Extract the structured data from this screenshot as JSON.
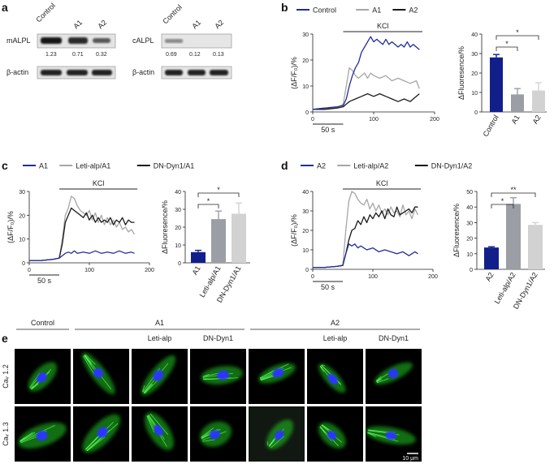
{
  "panels": {
    "a": "a",
    "b": "b",
    "c": "c",
    "d": "d",
    "e": "e"
  },
  "colors": {
    "blue": "#1f2f96",
    "gray": "#a6a6a6",
    "black": "#1a1a1a",
    "navy": "#121f8a",
    "midgray": "#9b9ea5",
    "lightgray": "#d2d2d2",
    "green": "#22c922",
    "nucleus": "#2a35ff"
  },
  "western": [
    {
      "protein": "mALPL",
      "lanes": [
        "Control",
        "A1",
        "A2"
      ],
      "values": [
        "1.23",
        "0.71",
        "0.32"
      ],
      "loading": "β-actin"
    },
    {
      "protein": "cALPL",
      "lanes": [
        "Control",
        "A1",
        "A2"
      ],
      "values": [
        "0.69",
        "0.12",
        "0.13"
      ],
      "loading": "β-actin"
    }
  ],
  "common": {
    "kcl": "KCl",
    "scale": "50 s",
    "ylabel": "(ΔF/F₀)/%",
    "barylabel": "ΔFluoresence/%",
    "sig1": "*",
    "sig2": "**"
  },
  "chart_data": [
    {
      "id": "b-trace",
      "type": "line",
      "legend": [
        "Control",
        "A1",
        "A2"
      ],
      "xlim": [
        0,
        200
      ],
      "ylim": [
        0,
        30
      ],
      "xticks": [
        0,
        100,
        200
      ],
      "yticks": [
        0,
        10,
        20,
        30
      ],
      "kcl_range": [
        50,
        180
      ],
      "series": [
        {
          "name": "Control",
          "x": [
            0,
            20,
            40,
            50,
            55,
            60,
            65,
            70,
            75,
            80,
            85,
            90,
            95,
            100,
            105,
            110,
            115,
            120,
            125,
            130,
            135,
            140,
            145,
            150,
            155,
            160,
            165,
            170,
            175
          ],
          "y": [
            1,
            1.5,
            2,
            2.5,
            5,
            10,
            14,
            17,
            19,
            23,
            25,
            27,
            29,
            27,
            28,
            27,
            26,
            28,
            26,
            27,
            26,
            25,
            26,
            25,
            27,
            25,
            26,
            25,
            24
          ]
        },
        {
          "name": "A1",
          "x": [
            0,
            20,
            40,
            50,
            55,
            60,
            65,
            70,
            75,
            80,
            85,
            90,
            95,
            100,
            110,
            120,
            130,
            140,
            150,
            160,
            170,
            175
          ],
          "y": [
            1,
            1.5,
            1.5,
            3,
            10,
            17,
            16,
            14,
            13,
            14,
            15,
            13,
            15,
            14,
            13,
            14,
            12,
            13,
            12,
            11,
            12,
            9
          ]
        },
        {
          "name": "A2",
          "x": [
            0,
            20,
            40,
            50,
            55,
            60,
            70,
            80,
            90,
            100,
            110,
            120,
            130,
            140,
            150,
            160,
            170,
            175
          ],
          "y": [
            1,
            1,
            1.5,
            2,
            3,
            4,
            5,
            6,
            7,
            6,
            7,
            6,
            5,
            4,
            5,
            4,
            6,
            7
          ]
        }
      ]
    },
    {
      "id": "b-bar",
      "type": "bar",
      "categories": [
        "Control",
        "A1",
        "A2"
      ],
      "values": [
        28,
        9,
        11
      ],
      "errors": [
        1.5,
        3,
        4
      ],
      "ylim": [
        0,
        40
      ],
      "yticks": [
        0,
        10,
        20,
        30,
        40
      ],
      "ylabel": "ΔFluoresence/%",
      "significance": [
        {
          "from": 0,
          "to": 1,
          "label": "*"
        },
        {
          "from": 0,
          "to": 2,
          "label": "*"
        }
      ]
    },
    {
      "id": "c-trace",
      "type": "line",
      "legend": [
        "A1",
        "Leti-alp/A1",
        "DN-Dyn1/A1"
      ],
      "xlim": [
        0,
        200
      ],
      "ylim": [
        0,
        30
      ],
      "xticks": [
        0,
        100,
        200
      ],
      "yticks": [
        0,
        10,
        20,
        30
      ],
      "kcl_range": [
        50,
        180
      ],
      "series": [
        {
          "name": "A1",
          "x": [
            0,
            20,
            40,
            50,
            55,
            60,
            65,
            70,
            75,
            80,
            90,
            100,
            110,
            120,
            130,
            140,
            150,
            160,
            170,
            175
          ],
          "y": [
            1,
            1,
            1.5,
            2,
            3,
            4,
            4.5,
            4,
            5,
            4,
            4.5,
            4,
            5,
            4,
            4.5,
            4,
            5,
            4,
            4.5,
            4
          ]
        },
        {
          "name": "Leti-alp/A1",
          "x": [
            0,
            20,
            40,
            50,
            55,
            60,
            65,
            70,
            75,
            80,
            85,
            90,
            95,
            100,
            105,
            110,
            115,
            120,
            125,
            130,
            135,
            140,
            145,
            150,
            155,
            160,
            165,
            170,
            175
          ],
          "y": [
            1,
            1,
            1.5,
            2,
            10,
            20,
            23,
            28,
            27,
            24,
            22,
            21,
            20,
            22,
            18,
            21,
            17,
            20,
            16,
            19,
            16,
            18,
            15,
            17,
            14,
            15,
            13,
            14,
            12
          ]
        },
        {
          "name": "DN-Dyn1/A1",
          "x": [
            0,
            20,
            40,
            50,
            55,
            60,
            65,
            70,
            75,
            80,
            85,
            90,
            95,
            100,
            105,
            110,
            115,
            120,
            125,
            130,
            135,
            140,
            145,
            150,
            155,
            160,
            165,
            170,
            175
          ],
          "y": [
            1,
            1,
            1.5,
            2,
            8,
            17,
            20,
            23,
            22,
            21,
            20,
            19,
            21,
            18,
            20,
            17,
            19,
            17,
            18,
            17,
            19,
            16,
            18,
            17,
            19,
            16,
            18,
            17,
            17
          ]
        }
      ]
    },
    {
      "id": "c-bar",
      "type": "bar",
      "categories": [
        "A1",
        "Leti-alp/A1",
        "DN-Dyn1/A1"
      ],
      "values": [
        6,
        24.5,
        27.5
      ],
      "errors": [
        1,
        4.5,
        6
      ],
      "ylim": [
        0,
        40
      ],
      "yticks": [
        0,
        10,
        20,
        30,
        40
      ],
      "ylabel": "ΔFluoresence/%",
      "significance": [
        {
          "from": 0,
          "to": 1,
          "label": "*"
        },
        {
          "from": 0,
          "to": 2,
          "label": "*"
        }
      ]
    },
    {
      "id": "d-trace",
      "type": "line",
      "legend": [
        "A2",
        "Leti-alp/A2",
        "DN-Dyn1/A2"
      ],
      "xlim": [
        0,
        200
      ],
      "ylim": [
        0,
        40
      ],
      "xticks": [
        0,
        100,
        200
      ],
      "yticks": [
        0,
        10,
        20,
        30,
        40
      ],
      "kcl_range": [
        50,
        180
      ],
      "series": [
        {
          "name": "A2",
          "x": [
            0,
            20,
            40,
            50,
            55,
            60,
            65,
            70,
            75,
            80,
            90,
            100,
            110,
            120,
            130,
            140,
            150,
            160,
            170,
            175
          ],
          "y": [
            1,
            1,
            1.5,
            2,
            8,
            13,
            12,
            13,
            11,
            12,
            10,
            11,
            9,
            10,
            9,
            8,
            9,
            7,
            9,
            8
          ]
        },
        {
          "name": "Leti-alp/A2",
          "x": [
            0,
            20,
            40,
            50,
            55,
            60,
            65,
            70,
            75,
            80,
            85,
            90,
            95,
            100,
            105,
            110,
            115,
            120,
            125,
            130,
            135,
            140,
            145,
            150,
            155,
            160,
            165,
            170,
            175
          ],
          "y": [
            1,
            1,
            1.5,
            2,
            20,
            35,
            40,
            39,
            36,
            34,
            33,
            36,
            31,
            34,
            30,
            33,
            29,
            31,
            28,
            32,
            29,
            30,
            27,
            33,
            28,
            30,
            26,
            31,
            28
          ]
        },
        {
          "name": "DN-Dyn1/A2",
          "x": [
            0,
            20,
            40,
            50,
            55,
            60,
            65,
            70,
            75,
            80,
            85,
            90,
            95,
            100,
            105,
            110,
            115,
            120,
            125,
            130,
            135,
            140,
            145,
            150,
            155,
            160,
            165,
            170,
            175
          ],
          "y": [
            1,
            1,
            1.5,
            2,
            8,
            15,
            20,
            21,
            25,
            23,
            27,
            24,
            28,
            26,
            29,
            27,
            30,
            26,
            31,
            28,
            27,
            32,
            28,
            29,
            30,
            31,
            29,
            32,
            32
          ]
        }
      ]
    },
    {
      "id": "d-bar",
      "type": "bar",
      "categories": [
        "A2",
        "Leti-alp/A2",
        "DN-Dyn1/A2"
      ],
      "values": [
        14,
        42,
        28.5
      ],
      "errors": [
        0.5,
        4,
        1.5
      ],
      "ylim": [
        0,
        50
      ],
      "yticks": [
        0,
        10,
        20,
        30,
        40,
        50
      ],
      "ylabel": "ΔFluoresence/%",
      "significance": [
        {
          "from": 0,
          "to": 1,
          "label": "*"
        },
        {
          "from": 0,
          "to": 2,
          "label": "**"
        }
      ]
    }
  ],
  "panel_e": {
    "groups": [
      "Control",
      "A1",
      "A2"
    ],
    "subheaders": [
      "Leti-alp",
      "DN-Dyn1",
      "Leti-alp",
      "DN-Dyn1"
    ],
    "rows": [
      "Caᵥ 1.2",
      "Caᵥ 1.3"
    ],
    "scalebar": "10 µm"
  }
}
